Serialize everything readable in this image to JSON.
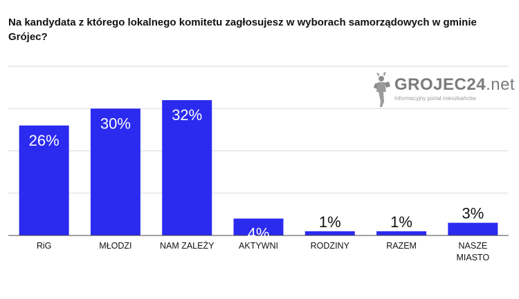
{
  "title": "Na kandydata z którego lokalnego komitetu zagłosujesz w wyborach samorządowych w gminie Grójec?",
  "logo": {
    "name_main": "GROJEC24",
    "name_suffix": ".net",
    "tagline": "Informacyjny portal mieszkańców"
  },
  "colors": {
    "bar": "#2b2bf0",
    "grid": "#d9d9d9",
    "axis": "#444444"
  },
  "chart_data": {
    "type": "bar",
    "title": "Na kandydata z którego lokalnego komitetu zagłosujesz w wyborach samorządowych w gminie Grójec?",
    "categories": [
      "RiG",
      "MŁODZI",
      "NAM ZALEŻY",
      "AKTYWNI",
      "RODZINY",
      "RAZEM",
      "NASZE MIASTO"
    ],
    "category_lines": [
      [
        "RiG"
      ],
      [
        "MŁODZI"
      ],
      [
        "NAM ZALEŻY"
      ],
      [
        "AKTYWNI"
      ],
      [
        "RODZINY"
      ],
      [
        "RAZEM"
      ],
      [
        "NASZE",
        "MIASTO"
      ]
    ],
    "values": [
      26,
      30,
      32,
      4,
      1,
      1,
      3
    ],
    "value_labels": [
      "26%",
      "30%",
      "32%",
      "4%",
      "1%",
      "1%",
      "3%"
    ],
    "ylim": [
      0,
      40
    ],
    "yticks": [
      0,
      10,
      20,
      30,
      40
    ],
    "grid": true,
    "xlabel": "",
    "ylabel": ""
  }
}
